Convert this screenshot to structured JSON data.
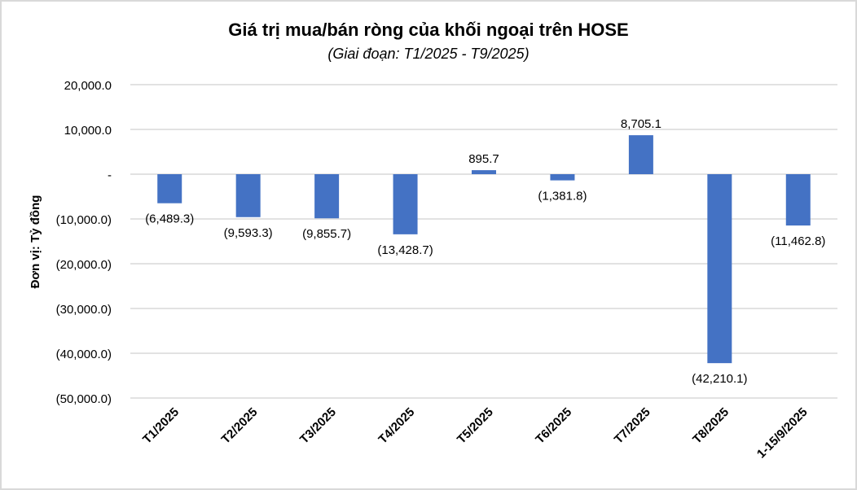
{
  "chart_data": {
    "type": "bar",
    "title": "Giá trị mua/bán ròng của khối ngoại trên HOSE",
    "subtitle": "(Giai đoạn: T1/2025 - T9/2025)",
    "xlabel": "",
    "ylabel": "Đơn vị: Tỷ đồng",
    "ylim": [
      -50000,
      20000
    ],
    "yticks": [
      20000,
      10000,
      0,
      -10000,
      -20000,
      -30000,
      -40000,
      -50000
    ],
    "ytick_labels": [
      "20,000.0",
      "10,000.0",
      "-",
      "(10,000.0)",
      "(20,000.0)",
      "(30,000.0)",
      "(40,000.0)",
      "(50,000.0)"
    ],
    "grid": true,
    "categories": [
      "T1/2025",
      "T2/2025",
      "T3/2025",
      "T4/2025",
      "T5/2025",
      "T6/2025",
      "T7/2025",
      "T8/2025",
      "1-15/9/2025"
    ],
    "values": [
      -6489.3,
      -9593.3,
      -9855.7,
      -13428.7,
      895.7,
      -1381.8,
      8705.1,
      -42210.1,
      -11462.8
    ],
    "data_labels": [
      "(6,489.3)",
      "(9,593.3)",
      "(9,855.7)",
      "(13,428.7)",
      "895.7",
      "(1,381.8)",
      "8,705.1",
      "(42,210.1)",
      "(11,462.8)"
    ],
    "colors": {
      "bar": "#4472C4",
      "grid": "#d9d9d9"
    }
  }
}
